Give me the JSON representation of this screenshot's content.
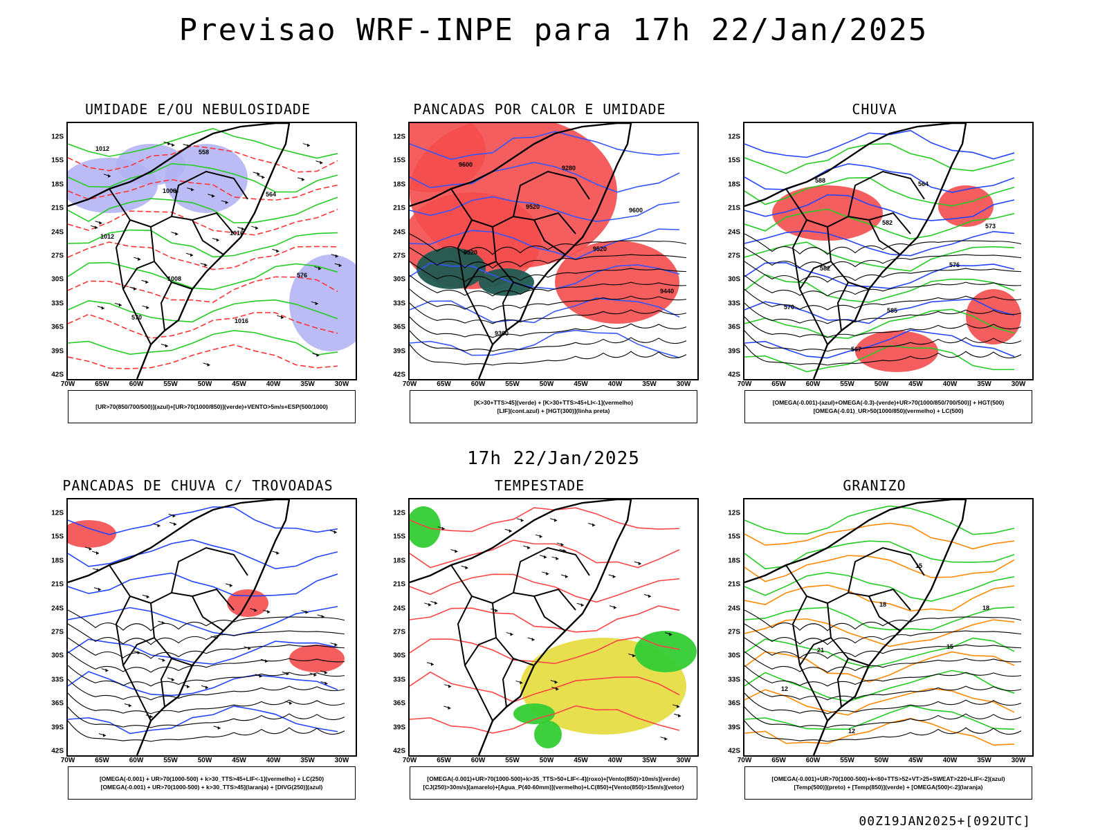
{
  "main_title": "Previsao WRF-INPE  para 17h 22/Jan/2025",
  "mid_date": "17h 22/Jan/2025",
  "footer_stamp": "00Z19JAN2025+[092UTC]",
  "lat_ticks": [
    "12S",
    "15S",
    "18S",
    "21S",
    "24S",
    "27S",
    "30S",
    "33S",
    "36S",
    "39S",
    "42S"
  ],
  "lon_ticks": [
    "70W",
    "65W",
    "60W",
    "55W",
    "50W",
    "45W",
    "40W",
    "35W",
    "30W"
  ],
  "panels": [
    {
      "title": "UMIDADE E/OU NEBULOSIDADE",
      "legend": [
        "[UR>70(850/700/500)](azul)+[UR>70(1000/850)](verde)+VENTO>5m/s+ESP(500/1000)"
      ],
      "labels": [
        "1012",
        "1008",
        "1016",
        "576",
        "570",
        "558",
        "564",
        "1012",
        "1008",
        "1016"
      ],
      "colors": {
        "fill_a": "#b4b4f5",
        "line_a": "#22cc22",
        "line_b": "#ff3333",
        "line_c": "#000000"
      }
    },
    {
      "title": "PANCADAS POR CALOR E UMIDADE",
      "legend": [
        "[K>30+TTS>45](verde)  +  [K>30+TTS>45+LI<-1](vermelho)",
        "[LIF](cont.azul)  +  [HGT(300)](linha preta)"
      ],
      "labels": [
        "9600",
        "9520",
        "9520",
        "9440",
        "9360",
        "9280",
        "9600",
        "9520"
      ],
      "colors": {
        "fill_a": "#f44c4c",
        "fill_b": "#1f5a50",
        "line_a": "#3355ff",
        "line_c": "#000000"
      }
    },
    {
      "title": "CHUVA",
      "legend": [
        "[OMEGA(-0.001)-(azul)+OMEGA(-0.3)-(verde)+UR>70(1000/850/700/500)]  +  HGT(500)",
        "[OMEGA(-0.01)_UR>50(1000/850)(vermelho)  +  LC(500)"
      ],
      "labels": [
        "588",
        "582",
        "576",
        "570",
        "567",
        "564",
        "573",
        "582",
        "585"
      ],
      "colors": {
        "fill_a": "#f44c4c",
        "line_a": "#2244ff",
        "line_b": "#22cc22",
        "line_c": "#000000"
      }
    },
    {
      "title": "PANCADAS DE CHUVA C/ TROVOADAS",
      "legend": [
        "[OMEGA(-0.001)  +  UR>70(1000-500)  +  k>30_TTS>45+LIF<-1](vermelho)  +  LC(250)",
        "[OMEGA(-0.001)  +  UR>70(1000-500)  +  k>30_TTS>45](laranja)  +  [DIVG(250)](azul)"
      ],
      "labels": [],
      "colors": {
        "fill_a": "#f44c4c",
        "line_a": "#2244ff",
        "line_c": "#000000"
      }
    },
    {
      "title": "TEMPESTADE",
      "legend": [
        "[OMEGA(-0.001)+UR>70(1000-500)+k>35_TTS>50+LIF<-4](roxo)+[Vento(850)>10m/s](verde)",
        "[CJ(250)>30m/s](amarelo)+[Agua_P(40-60mm)](vermelho)+LC(850)+[Vento(850)>15m/s](vetor)"
      ],
      "labels": [],
      "colors": {
        "fill_a": "#e6dc3c",
        "fill_b": "#33cc33",
        "line_b": "#ff4444",
        "line_c": "#000000"
      }
    },
    {
      "title": "GRANIZO",
      "legend": [
        "[OMEGA(-0.001)+UR>70(1000-500)+k<60+TTS>52+VT>25+SWEAT>220+LIF<-2](azul)",
        "[Temp(500)](preto)  +  [Temp(850)](verde)  +  [OMEGA(500)<-2](laranja)"
      ],
      "labels": [
        "18",
        "15",
        "12",
        "12",
        "15",
        "18",
        "21"
      ],
      "colors": {
        "line_a": "#22cc22",
        "line_b": "#ff8800",
        "line_c": "#000000"
      }
    }
  ]
}
